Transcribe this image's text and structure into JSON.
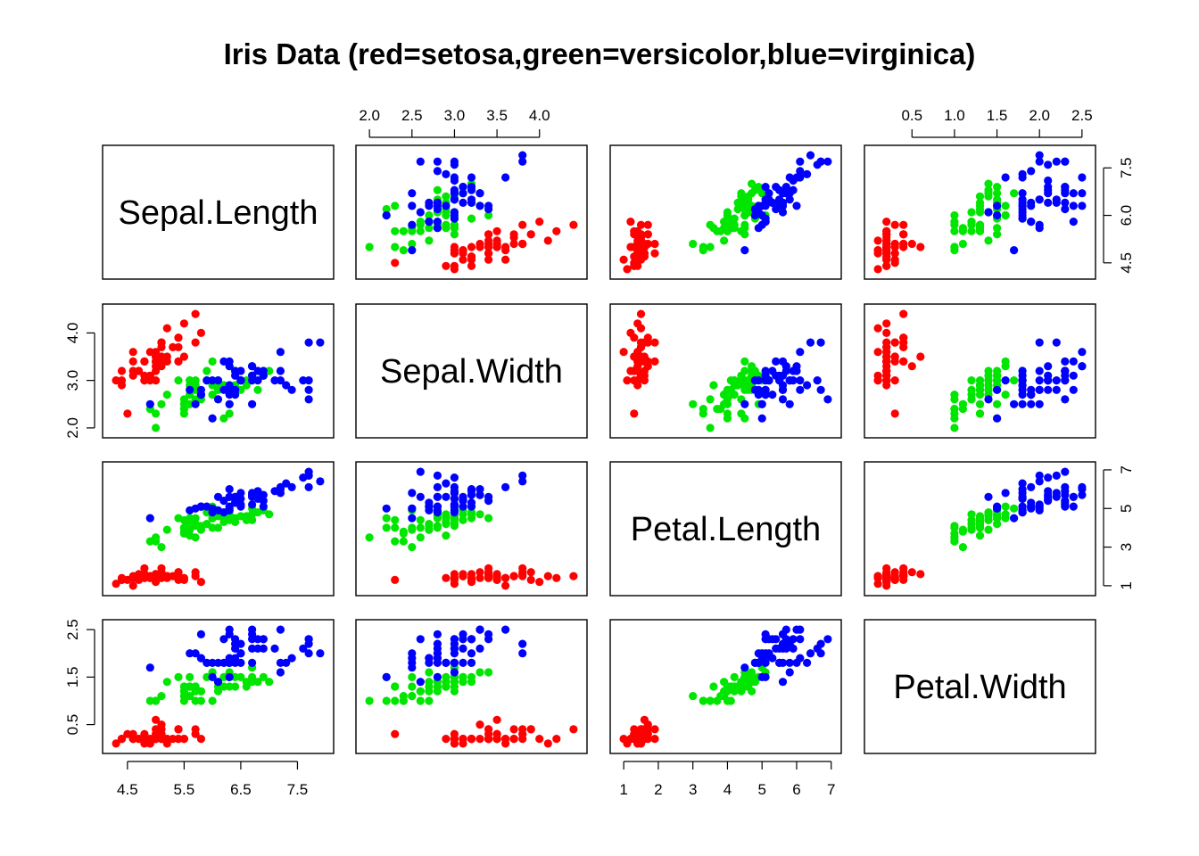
{
  "chart_data": {
    "type": "scatter-matrix",
    "title": "Iris Data (red=setosa,green=versicolor,blue=virginica)",
    "variables": [
      "Sepal.Length",
      "Sepal.Width",
      "Petal.Length",
      "Petal.Width"
    ],
    "ranges": [
      [
        4.3,
        7.9
      ],
      [
        2.0,
        4.4
      ],
      [
        1.0,
        6.9
      ],
      [
        0.1,
        2.5
      ]
    ],
    "ticks": [
      [
        "4.5",
        "5.5",
        "6.5",
        "7.5"
      ],
      [
        "2.0",
        "2.5",
        "3.0",
        "3.5",
        "4.0"
      ],
      [
        "1",
        "2",
        "3",
        "4",
        "5",
        "6",
        "7"
      ],
      [
        "0.5",
        "1.0",
        "1.5",
        "2.0",
        "2.5"
      ]
    ],
    "left_axis_ticks": {
      "Sepal.Width": [
        "2.0",
        "3.0",
        "4.0"
      ],
      "Petal.Width": [
        "0.5",
        "1.5",
        "2.5"
      ]
    },
    "right_axis_ticks": {
      "Sepal.Length": [
        "4.5",
        "6.0",
        "7.5"
      ],
      "Petal.Length": [
        "1",
        "3",
        "5",
        "7"
      ]
    },
    "grid": false,
    "legend": "none",
    "series": [
      {
        "color": "#ff0000",
        "points": [
          [
            5.1,
            3.5,
            1.4,
            0.2
          ],
          [
            4.9,
            3.0,
            1.4,
            0.2
          ],
          [
            4.7,
            3.2,
            1.3,
            0.2
          ],
          [
            4.6,
            3.1,
            1.5,
            0.2
          ],
          [
            5.0,
            3.6,
            1.4,
            0.2
          ],
          [
            5.4,
            3.9,
            1.7,
            0.4
          ],
          [
            4.6,
            3.4,
            1.4,
            0.3
          ],
          [
            5.0,
            3.4,
            1.5,
            0.2
          ],
          [
            4.4,
            2.9,
            1.4,
            0.2
          ],
          [
            4.9,
            3.1,
            1.5,
            0.1
          ],
          [
            5.4,
            3.7,
            1.5,
            0.2
          ],
          [
            4.8,
            3.4,
            1.6,
            0.2
          ],
          [
            4.8,
            3.0,
            1.4,
            0.1
          ],
          [
            4.3,
            3.0,
            1.1,
            0.1
          ],
          [
            5.8,
            4.0,
            1.2,
            0.2
          ],
          [
            5.7,
            4.4,
            1.5,
            0.4
          ],
          [
            5.4,
            3.9,
            1.3,
            0.4
          ],
          [
            5.1,
            3.5,
            1.4,
            0.3
          ],
          [
            5.7,
            3.8,
            1.7,
            0.3
          ],
          [
            5.1,
            3.8,
            1.5,
            0.3
          ],
          [
            5.4,
            3.4,
            1.7,
            0.2
          ],
          [
            5.1,
            3.7,
            1.5,
            0.4
          ],
          [
            4.6,
            3.6,
            1.0,
            0.2
          ],
          [
            5.1,
            3.3,
            1.7,
            0.5
          ],
          [
            4.8,
            3.4,
            1.9,
            0.2
          ],
          [
            5.0,
            3.0,
            1.6,
            0.2
          ],
          [
            5.0,
            3.4,
            1.6,
            0.4
          ],
          [
            5.2,
            3.5,
            1.5,
            0.2
          ],
          [
            5.2,
            3.4,
            1.4,
            0.2
          ],
          [
            4.7,
            3.2,
            1.6,
            0.2
          ],
          [
            4.8,
            3.1,
            1.6,
            0.2
          ],
          [
            5.4,
            3.4,
            1.5,
            0.4
          ],
          [
            5.2,
            4.1,
            1.5,
            0.1
          ],
          [
            5.5,
            4.2,
            1.4,
            0.2
          ],
          [
            4.9,
            3.1,
            1.5,
            0.2
          ],
          [
            5.0,
            3.2,
            1.2,
            0.2
          ],
          [
            5.5,
            3.5,
            1.3,
            0.2
          ],
          [
            4.9,
            3.6,
            1.4,
            0.1
          ],
          [
            4.4,
            3.0,
            1.3,
            0.2
          ],
          [
            5.1,
            3.4,
            1.5,
            0.2
          ],
          [
            5.0,
            3.5,
            1.3,
            0.3
          ],
          [
            4.5,
            2.3,
            1.3,
            0.3
          ],
          [
            4.4,
            3.2,
            1.3,
            0.2
          ],
          [
            5.0,
            3.5,
            1.6,
            0.6
          ],
          [
            5.1,
            3.8,
            1.9,
            0.4
          ],
          [
            4.8,
            3.0,
            1.4,
            0.3
          ],
          [
            5.1,
            3.8,
            1.6,
            0.2
          ],
          [
            4.6,
            3.2,
            1.4,
            0.2
          ],
          [
            5.3,
            3.7,
            1.5,
            0.2
          ],
          [
            5.0,
            3.3,
            1.4,
            0.2
          ]
        ]
      },
      {
        "color": "#00e600",
        "points": [
          [
            7.0,
            3.2,
            4.7,
            1.4
          ],
          [
            6.4,
            3.2,
            4.5,
            1.5
          ],
          [
            6.9,
            3.1,
            4.9,
            1.5
          ],
          [
            5.5,
            2.3,
            4.0,
            1.3
          ],
          [
            6.5,
            2.8,
            4.6,
            1.5
          ],
          [
            5.7,
            2.8,
            4.5,
            1.3
          ],
          [
            6.3,
            3.3,
            4.7,
            1.6
          ],
          [
            4.9,
            2.4,
            3.3,
            1.0
          ],
          [
            6.6,
            2.9,
            4.6,
            1.3
          ],
          [
            5.2,
            2.7,
            3.9,
            1.4
          ],
          [
            5.0,
            2.0,
            3.5,
            1.0
          ],
          [
            5.9,
            3.0,
            4.2,
            1.5
          ],
          [
            6.0,
            2.2,
            4.0,
            1.0
          ],
          [
            6.1,
            2.9,
            4.7,
            1.4
          ],
          [
            5.6,
            2.9,
            3.6,
            1.3
          ],
          [
            6.7,
            3.1,
            4.4,
            1.4
          ],
          [
            5.6,
            3.0,
            4.5,
            1.5
          ],
          [
            5.8,
            2.7,
            4.1,
            1.0
          ],
          [
            6.2,
            2.2,
            4.5,
            1.5
          ],
          [
            5.6,
            2.5,
            3.9,
            1.1
          ],
          [
            5.9,
            3.2,
            4.8,
            1.8
          ],
          [
            6.1,
            2.8,
            4.0,
            1.3
          ],
          [
            6.3,
            2.5,
            4.9,
            1.5
          ],
          [
            6.1,
            2.8,
            4.7,
            1.2
          ],
          [
            6.4,
            2.9,
            4.3,
            1.3
          ],
          [
            6.6,
            3.0,
            4.4,
            1.4
          ],
          [
            6.8,
            2.8,
            4.8,
            1.4
          ],
          [
            6.7,
            3.0,
            5.0,
            1.7
          ],
          [
            6.0,
            2.9,
            4.5,
            1.5
          ],
          [
            5.7,
            2.6,
            3.5,
            1.0
          ],
          [
            5.5,
            2.4,
            3.8,
            1.1
          ],
          [
            5.5,
            2.4,
            3.7,
            1.0
          ],
          [
            5.8,
            2.7,
            3.9,
            1.2
          ],
          [
            6.0,
            2.7,
            5.1,
            1.6
          ],
          [
            5.4,
            3.0,
            4.5,
            1.5
          ],
          [
            6.0,
            3.4,
            4.5,
            1.6
          ],
          [
            6.7,
            3.1,
            4.7,
            1.5
          ],
          [
            6.3,
            2.3,
            4.4,
            1.3
          ],
          [
            5.6,
            3.0,
            4.1,
            1.3
          ],
          [
            5.5,
            2.5,
            4.0,
            1.3
          ],
          [
            5.5,
            2.6,
            4.4,
            1.2
          ],
          [
            6.1,
            3.0,
            4.6,
            1.4
          ],
          [
            5.8,
            2.6,
            4.0,
            1.2
          ],
          [
            5.0,
            2.3,
            3.3,
            1.0
          ],
          [
            5.6,
            2.7,
            4.2,
            1.3
          ],
          [
            5.7,
            3.0,
            4.2,
            1.2
          ],
          [
            5.7,
            2.9,
            4.2,
            1.3
          ],
          [
            6.2,
            2.9,
            4.3,
            1.3
          ],
          [
            5.1,
            2.5,
            3.0,
            1.1
          ],
          [
            5.7,
            2.8,
            4.1,
            1.3
          ]
        ]
      },
      {
        "color": "#0000ff",
        "points": [
          [
            6.3,
            3.3,
            6.0,
            2.5
          ],
          [
            5.8,
            2.7,
            5.1,
            1.9
          ],
          [
            7.1,
            3.0,
            5.9,
            2.1
          ],
          [
            6.3,
            2.9,
            5.6,
            1.8
          ],
          [
            6.5,
            3.0,
            5.8,
            2.2
          ],
          [
            7.6,
            3.0,
            6.6,
            2.1
          ],
          [
            4.9,
            2.5,
            4.5,
            1.7
          ],
          [
            7.3,
            2.9,
            6.3,
            1.8
          ],
          [
            6.7,
            2.5,
            5.8,
            1.8
          ],
          [
            7.2,
            3.6,
            6.1,
            2.5
          ],
          [
            6.5,
            3.2,
            5.1,
            2.0
          ],
          [
            6.4,
            2.7,
            5.3,
            1.9
          ],
          [
            6.8,
            3.0,
            5.5,
            2.1
          ],
          [
            5.7,
            2.5,
            5.0,
            2.0
          ],
          [
            5.8,
            2.8,
            5.1,
            2.4
          ],
          [
            6.4,
            3.2,
            5.3,
            2.3
          ],
          [
            6.5,
            3.0,
            5.5,
            1.8
          ],
          [
            7.7,
            3.8,
            6.7,
            2.2
          ],
          [
            7.7,
            2.6,
            6.9,
            2.3
          ],
          [
            6.0,
            2.2,
            5.0,
            1.5
          ],
          [
            6.9,
            3.2,
            5.7,
            2.3
          ],
          [
            5.6,
            2.8,
            4.9,
            2.0
          ],
          [
            7.7,
            2.8,
            6.7,
            2.0
          ],
          [
            6.3,
            2.7,
            4.9,
            1.8
          ],
          [
            6.7,
            3.3,
            5.7,
            2.1
          ],
          [
            7.2,
            3.2,
            6.0,
            1.8
          ],
          [
            6.2,
            2.8,
            4.8,
            1.8
          ],
          [
            6.1,
            3.0,
            4.9,
            1.8
          ],
          [
            6.4,
            2.8,
            5.6,
            2.1
          ],
          [
            7.2,
            3.0,
            5.8,
            1.6
          ],
          [
            7.4,
            2.8,
            6.1,
            1.9
          ],
          [
            7.9,
            3.8,
            6.4,
            2.0
          ],
          [
            6.4,
            2.8,
            5.6,
            2.2
          ],
          [
            6.3,
            2.8,
            5.1,
            1.5
          ],
          [
            6.1,
            2.6,
            5.6,
            1.4
          ],
          [
            7.7,
            3.0,
            6.1,
            2.3
          ],
          [
            6.3,
            3.4,
            5.6,
            2.4
          ],
          [
            6.4,
            3.1,
            5.5,
            1.8
          ],
          [
            6.0,
            3.0,
            4.8,
            1.8
          ],
          [
            6.9,
            3.1,
            5.4,
            2.1
          ],
          [
            6.7,
            3.1,
            5.6,
            2.4
          ],
          [
            6.9,
            3.1,
            5.1,
            2.3
          ],
          [
            5.8,
            2.7,
            5.1,
            1.9
          ],
          [
            6.8,
            3.2,
            5.9,
            2.3
          ],
          [
            6.7,
            3.3,
            5.7,
            2.5
          ],
          [
            6.7,
            3.0,
            5.2,
            2.3
          ],
          [
            6.3,
            2.5,
            5.0,
            1.9
          ],
          [
            6.5,
            3.0,
            5.2,
            2.0
          ],
          [
            6.2,
            3.4,
            5.4,
            2.3
          ],
          [
            5.9,
            3.0,
            5.1,
            1.8
          ]
        ]
      }
    ]
  }
}
